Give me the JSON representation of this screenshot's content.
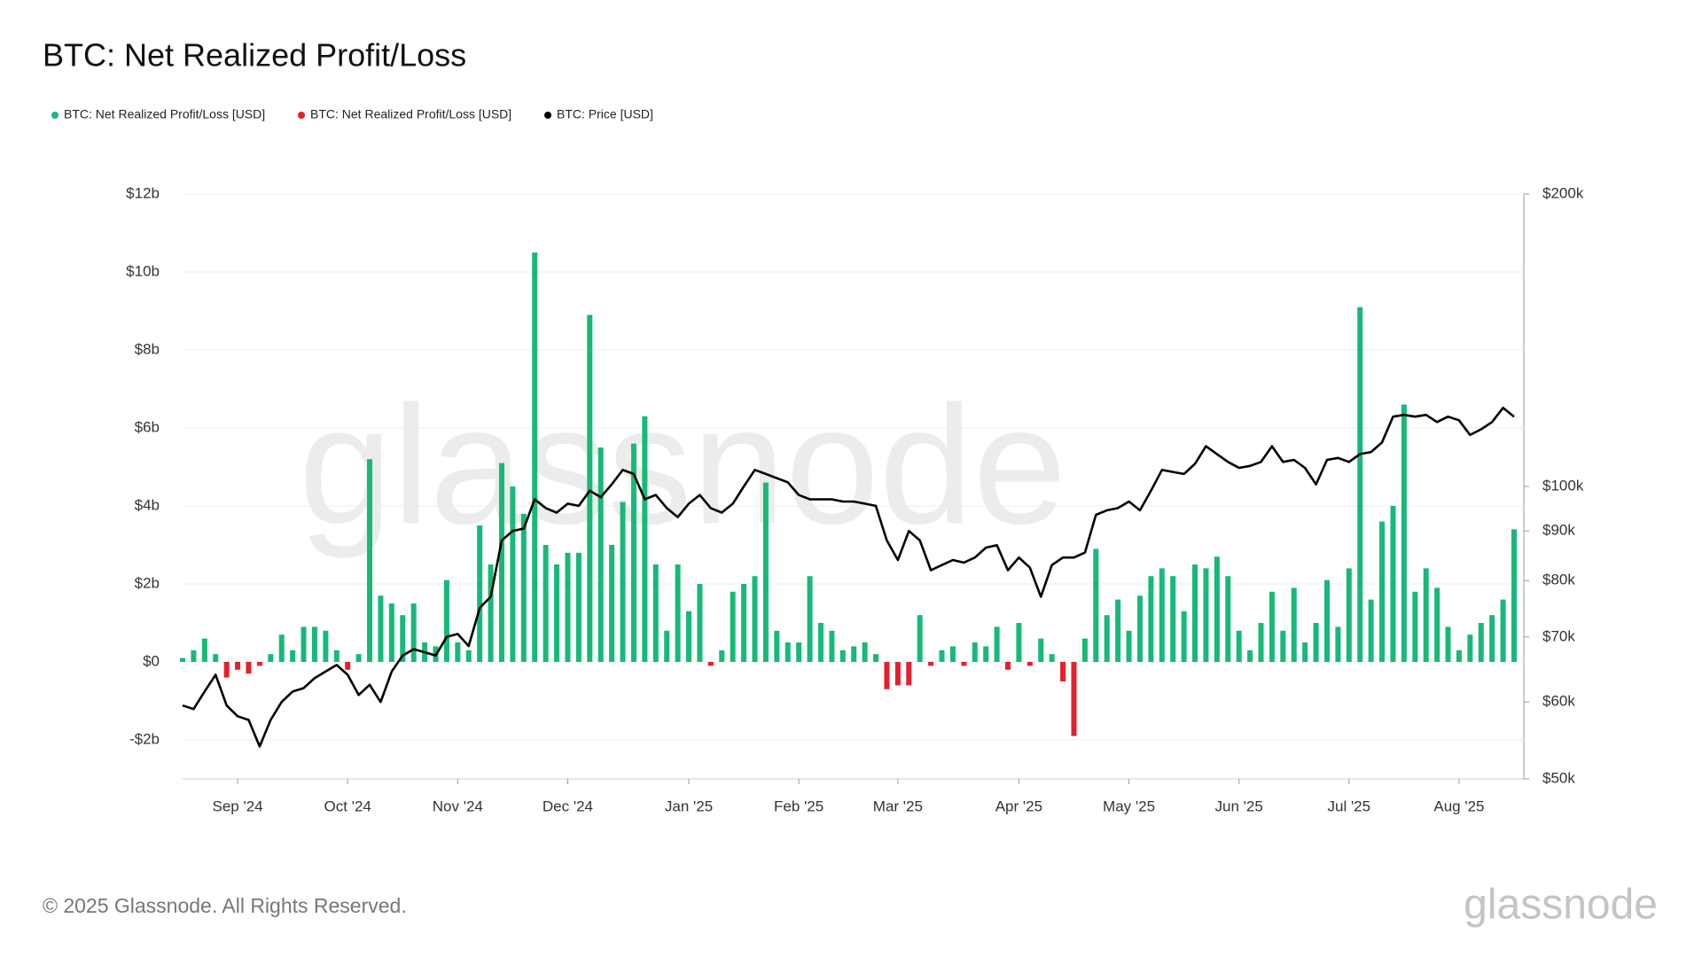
{
  "chart_data": {
    "type": "bar-line",
    "title": "BTC: Net Realized Profit/Loss",
    "watermark": "glassnode",
    "logo": "glassnode",
    "copyright": "© 2025 Glassnode. All Rights Reserved.",
    "categories": [
      null,
      null,
      null,
      null,
      null,
      "Sep '24",
      null,
      null,
      null,
      null,
      null,
      null,
      null,
      null,
      null,
      "Oct '24",
      null,
      null,
      null,
      null,
      null,
      null,
      null,
      null,
      null,
      "Nov '24",
      null,
      null,
      null,
      null,
      null,
      null,
      null,
      null,
      null,
      "Dec '24",
      null,
      null,
      null,
      null,
      null,
      null,
      null,
      null,
      null,
      null,
      "Jan '25",
      null,
      null,
      null,
      null,
      null,
      null,
      null,
      null,
      null,
      "Feb '25",
      null,
      null,
      null,
      null,
      null,
      null,
      null,
      null,
      "Mar '25",
      null,
      null,
      null,
      null,
      null,
      null,
      null,
      null,
      null,
      null,
      "Apr '25",
      null,
      null,
      null,
      null,
      null,
      null,
      null,
      null,
      null,
      "May '25",
      null,
      null,
      null,
      null,
      null,
      null,
      null,
      null,
      null,
      "Jun '25",
      null,
      null,
      null,
      null,
      null,
      null,
      null,
      null,
      null,
      "Jul '25",
      null,
      null,
      null,
      null,
      null,
      null,
      null,
      null,
      null,
      "Aug '25",
      null,
      null,
      null,
      null,
      null
    ],
    "series": [
      {
        "name": "BTC: Net Realized Profit/Loss [USD]",
        "color": "#17b978",
        "values": [
          0.1,
          0.3,
          0.6,
          0.2,
          null,
          null,
          null,
          null,
          0.2,
          0.7,
          0.3,
          0.9,
          0.9,
          0.8,
          0.3,
          null,
          0.2,
          5.2,
          1.7,
          1.5,
          1.2,
          1.5,
          0.5,
          0.4,
          2.1,
          0.5,
          0.3,
          3.5,
          2.5,
          5.1,
          4.5,
          3.8,
          10.5,
          3.0,
          2.5,
          2.8,
          2.8,
          8.9,
          5.5,
          3.0,
          4.1,
          5.6,
          6.3,
          2.5,
          0.8,
          2.5,
          1.3,
          2.0,
          null,
          0.3,
          1.8,
          2.0,
          2.2,
          4.6,
          0.8,
          0.5,
          0.5,
          2.2,
          1.0,
          0.8,
          0.3,
          0.4,
          0.5,
          0.2,
          null,
          null,
          null,
          1.2,
          null,
          0.3,
          0.4,
          null,
          0.5,
          0.4,
          0.9,
          null,
          1.0,
          null,
          0.6,
          0.2,
          null,
          null,
          0.6,
          2.9,
          1.2,
          1.6,
          0.8,
          1.7,
          2.2,
          2.4,
          2.2,
          1.3,
          2.5,
          2.4,
          2.7,
          2.2,
          0.8,
          0.3,
          1.0,
          1.8,
          0.8,
          1.9,
          0.5,
          1.0,
          2.1,
          0.9,
          2.4,
          9.1,
          1.6,
          3.6,
          4.0,
          6.6,
          1.8,
          2.4,
          1.9,
          0.9,
          0.3,
          0.7,
          1.0,
          1.2,
          1.6,
          3.4
        ]
      },
      {
        "name": "BTC: Net Realized Profit/Loss [USD]",
        "color": "#e3202b",
        "values": [
          null,
          null,
          null,
          null,
          -0.4,
          -0.2,
          -0.3,
          -0.1,
          null,
          null,
          null,
          null,
          null,
          null,
          null,
          -0.2,
          null,
          null,
          null,
          null,
          null,
          null,
          null,
          null,
          null,
          null,
          null,
          null,
          null,
          null,
          null,
          null,
          null,
          null,
          null,
          null,
          null,
          null,
          null,
          null,
          null,
          null,
          null,
          null,
          null,
          null,
          null,
          null,
          -0.1,
          null,
          null,
          null,
          null,
          null,
          null,
          null,
          null,
          null,
          null,
          null,
          null,
          null,
          null,
          null,
          -0.7,
          -0.6,
          -0.6,
          null,
          -0.1,
          null,
          null,
          -0.1,
          null,
          null,
          null,
          -0.2,
          null,
          -0.1,
          null,
          null,
          -0.5,
          -1.9,
          null,
          null,
          null,
          null,
          null,
          null,
          null,
          null,
          null,
          null,
          null,
          null,
          null,
          null,
          null,
          null,
          null,
          null,
          null,
          null,
          null,
          null,
          null,
          null,
          null,
          null,
          null,
          null,
          null,
          null,
          null,
          null,
          null,
          null,
          null,
          null,
          null,
          null,
          null,
          null
        ]
      },
      {
        "name": "BTC: Price [USD]",
        "color": "#000000",
        "axis": "y2",
        "values": [
          59500,
          59000,
          61500,
          64000,
          59500,
          58000,
          57500,
          54000,
          57500,
          60000,
          61500,
          62000,
          63500,
          64500,
          65500,
          64000,
          61000,
          62500,
          60000,
          64500,
          67000,
          68000,
          67500,
          67000,
          70000,
          70500,
          68500,
          75000,
          77000,
          88000,
          90000,
          90500,
          97000,
          95000,
          94000,
          96000,
          95500,
          99000,
          97500,
          100500,
          104000,
          103000,
          97000,
          98000,
          95000,
          93000,
          96000,
          98000,
          95000,
          94000,
          96000,
          100000,
          104000,
          103000,
          102000,
          101000,
          98000,
          97000,
          97000,
          97000,
          96500,
          96500,
          96000,
          95500,
          88000,
          84000,
          90000,
          88000,
          82000,
          83000,
          84000,
          83500,
          84500,
          86500,
          87000,
          82000,
          84500,
          82500,
          77000,
          83000,
          84500,
          84500,
          85500,
          93500,
          94500,
          95000,
          96500,
          94500,
          99000,
          104000,
          103500,
          103000,
          105500,
          110000,
          108000,
          106000,
          104500,
          105000,
          106000,
          110000,
          106000,
          106500,
          104500,
          100500,
          106500,
          107000,
          106000,
          108000,
          108500,
          111000,
          118000,
          118500,
          118000,
          118500,
          116500,
          118000,
          117000,
          113000,
          114500,
          116500,
          120500,
          118000
        ]
      }
    ],
    "ylim": [
      -3,
      12
    ],
    "yticks": [
      {
        "value": -2,
        "label": "-$2b"
      },
      {
        "value": 0,
        "label": "$0"
      },
      {
        "value": 2,
        "label": "$2b"
      },
      {
        "value": 4,
        "label": "$4b"
      },
      {
        "value": 6,
        "label": "$6b"
      },
      {
        "value": 8,
        "label": "$8b"
      },
      {
        "value": 10,
        "label": "$10b"
      },
      {
        "value": 12,
        "label": "$12b"
      }
    ],
    "y2lim": [
      50000,
      200000
    ],
    "y2ticks": [
      {
        "value": 50000,
        "label": "$50k"
      },
      {
        "value": 60000,
        "label": "$60k"
      },
      {
        "value": 70000,
        "label": "$70k"
      },
      {
        "value": 80000,
        "label": "$80k"
      },
      {
        "value": 90000,
        "label": "$90k"
      },
      {
        "value": 100000,
        "label": "$100k"
      },
      {
        "value": 200000,
        "label": "$200k"
      }
    ],
    "y2log": true,
    "grid": true
  }
}
